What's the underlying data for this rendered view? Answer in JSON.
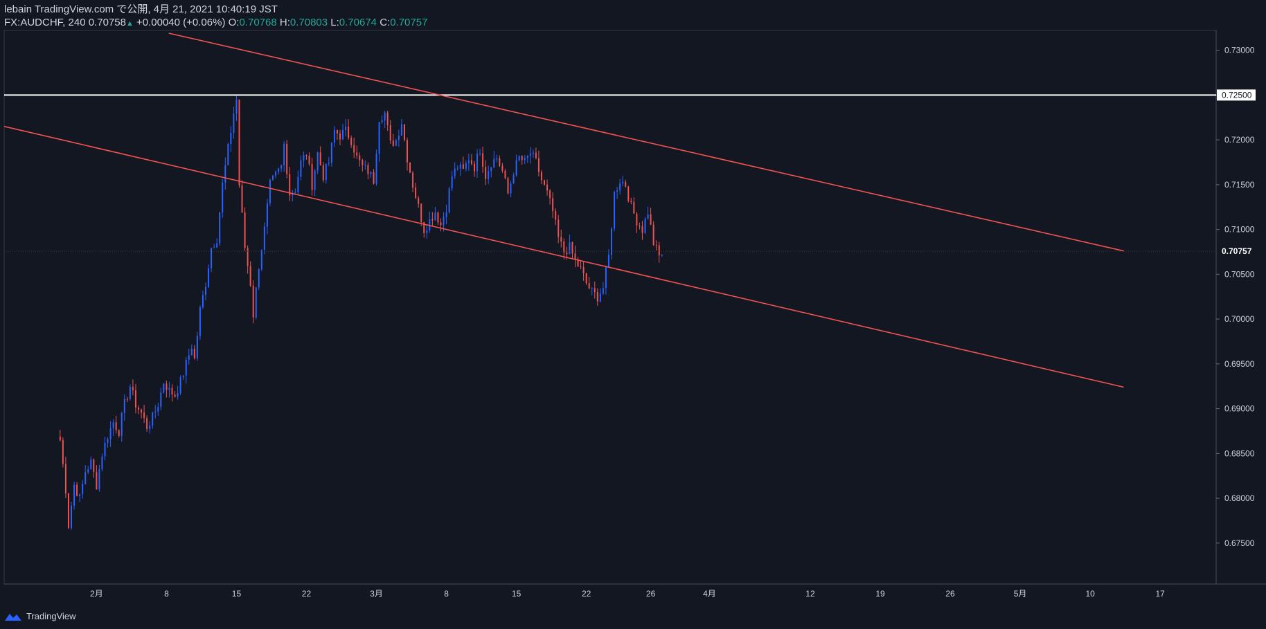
{
  "header": {
    "line1": "lebain TradingView.com で公開, 4月 21, 2021 10:40:19 JST",
    "symbol": "FX:AUDCHF, 240",
    "last": "0.70758",
    "change": "+0.00040 (+0.06%)",
    "o_label": "O:",
    "o_val": "0.70768",
    "h_label": "H:",
    "h_val": "0.70803",
    "l_label": "L:",
    "l_val": "0.70674",
    "c_label": "C:",
    "c_val": "0.70757"
  },
  "footer": {
    "brand": "TradingView"
  },
  "colors": {
    "bg": "#131722",
    "up": "#2962ff",
    "down": "#ef5350",
    "trend": "#f05350",
    "level": "#ffffff",
    "grid": "#2a2e39",
    "text": "#d1d4dc"
  },
  "chart_data": {
    "type": "candlestick",
    "title": "FX:AUDCHF, 240",
    "ylim": [
      0.6705,
      0.7315
    ],
    "y_ticks": [
      "0.73000",
      "0.72500",
      "0.72000",
      "0.71500",
      "0.71000",
      "0.70500",
      "0.70000",
      "0.69500",
      "0.69000",
      "0.68500",
      "0.68000",
      "0.67500"
    ],
    "x_ticks": [
      "2月",
      "8",
      "15",
      "22",
      "3月",
      "8",
      "15",
      "22",
      "26",
      "4月",
      "12",
      "19",
      "26",
      "5月",
      "10",
      "17"
    ],
    "x_tick_index": [
      33,
      58,
      83,
      108,
      133,
      158,
      183,
      208,
      231,
      252,
      288,
      313,
      338,
      363,
      388,
      413
    ],
    "last_price_label": "0.70757",
    "level_label": "0.72500",
    "horizontal_level": 0.725,
    "trendlines": [
      {
        "name": "upper-channel",
        "from": [
          58.8,
          0.7319
        ],
        "to": [
          400,
          0.7076
        ]
      },
      {
        "name": "lower-channel",
        "from": [
          0,
          0.7215
        ],
        "to": [
          400,
          0.6924
        ]
      }
    ],
    "close_path": [
      [
        20,
        0.6865
      ],
      [
        22,
        0.681
      ],
      [
        23,
        0.677
      ],
      [
        25,
        0.6815
      ],
      [
        27,
        0.68
      ],
      [
        29,
        0.683
      ],
      [
        31,
        0.684
      ],
      [
        33,
        0.6815
      ],
      [
        35,
        0.685
      ],
      [
        37,
        0.687
      ],
      [
        39,
        0.6885
      ],
      [
        41,
        0.6875
      ],
      [
        43,
        0.6905
      ],
      [
        45,
        0.6925
      ],
      [
        47,
        0.6905
      ],
      [
        49,
        0.6895
      ],
      [
        51,
        0.688
      ],
      [
        53,
        0.689
      ],
      [
        55,
        0.6905
      ],
      [
        57,
        0.693
      ],
      [
        59,
        0.692
      ],
      [
        61,
        0.6915
      ],
      [
        63,
        0.693
      ],
      [
        65,
        0.695
      ],
      [
        67,
        0.697
      ],
      [
        68,
        0.6955
      ],
      [
        70,
        0.701
      ],
      [
        72,
        0.704
      ],
      [
        74,
        0.708
      ],
      [
        76,
        0.709
      ],
      [
        78,
        0.715
      ],
      [
        80,
        0.719
      ],
      [
        82,
        0.723
      ],
      [
        83,
        0.7245
      ],
      [
        84,
        0.715
      ],
      [
        86,
        0.708
      ],
      [
        88,
        0.704
      ],
      [
        89,
        0.7005
      ],
      [
        91,
        0.706
      ],
      [
        93,
        0.71
      ],
      [
        95,
        0.715
      ],
      [
        97,
        0.716
      ],
      [
        99,
        0.717
      ],
      [
        100,
        0.7195
      ],
      [
        102,
        0.714
      ],
      [
        104,
        0.7145
      ],
      [
        106,
        0.7175
      ],
      [
        108,
        0.7185
      ],
      [
        110,
        0.715
      ],
      [
        112,
        0.7185
      ],
      [
        114,
        0.716
      ],
      [
        116,
        0.7175
      ],
      [
        118,
        0.721
      ],
      [
        120,
        0.7205
      ],
      [
        122,
        0.721
      ],
      [
        124,
        0.72
      ],
      [
        126,
        0.718
      ],
      [
        128,
        0.717
      ],
      [
        130,
        0.7165
      ],
      [
        132,
        0.7155
      ],
      [
        134,
        0.7225
      ],
      [
        136,
        0.723
      ],
      [
        138,
        0.7195
      ],
      [
        140,
        0.72
      ],
      [
        142,
        0.722
      ],
      [
        144,
        0.718
      ],
      [
        146,
        0.715
      ],
      [
        148,
        0.7125
      ],
      [
        150,
        0.71
      ],
      [
        152,
        0.711
      ],
      [
        154,
        0.712
      ],
      [
        156,
        0.7105
      ],
      [
        158,
        0.7125
      ],
      [
        160,
        0.716
      ],
      [
        162,
        0.717
      ],
      [
        164,
        0.7165
      ],
      [
        166,
        0.718
      ],
      [
        168,
        0.717
      ],
      [
        170,
        0.719
      ],
      [
        172,
        0.716
      ],
      [
        174,
        0.7175
      ],
      [
        176,
        0.718
      ],
      [
        178,
        0.7165
      ],
      [
        180,
        0.714
      ],
      [
        182,
        0.7165
      ],
      [
        184,
        0.718
      ],
      [
        186,
        0.7175
      ],
      [
        188,
        0.7185
      ],
      [
        190,
        0.7175
      ],
      [
        192,
        0.7155
      ],
      [
        194,
        0.714
      ],
      [
        196,
        0.712
      ],
      [
        198,
        0.709
      ],
      [
        200,
        0.7075
      ],
      [
        202,
        0.708
      ],
      [
        204,
        0.7065
      ],
      [
        206,
        0.7055
      ],
      [
        208,
        0.704
      ],
      [
        210,
        0.703
      ],
      [
        212,
        0.7025
      ],
      [
        214,
        0.7035
      ],
      [
        216,
        0.707
      ],
      [
        218,
        0.714
      ],
      [
        220,
        0.7155
      ],
      [
        222,
        0.715
      ],
      [
        224,
        0.7125
      ],
      [
        226,
        0.711
      ],
      [
        228,
        0.71
      ],
      [
        230,
        0.712
      ],
      [
        232,
        0.7085
      ],
      [
        234,
        0.707
      ],
      [
        236,
        0.7075
      ]
    ]
  }
}
